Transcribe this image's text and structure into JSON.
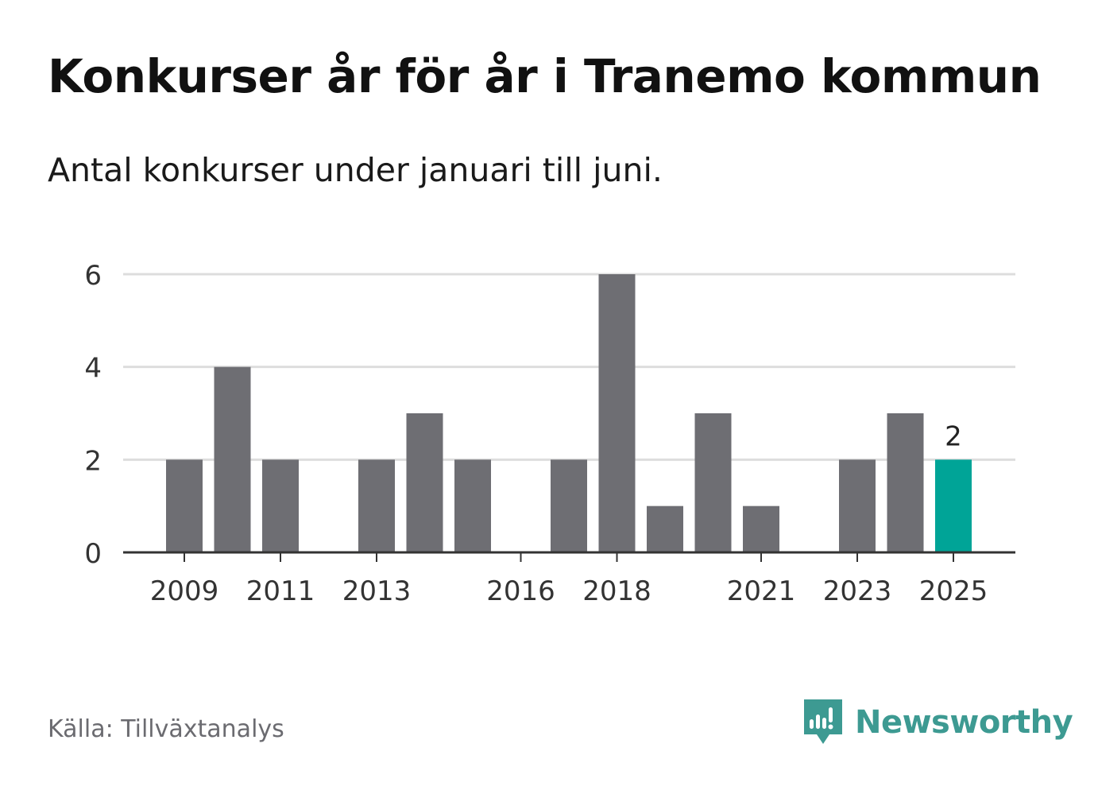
{
  "title": "Konkurser år för år i Tranemo kommun",
  "subtitle": "Antal konkurser under januari till juni.",
  "source": "Källa: Tillväxtanalys",
  "brand": {
    "name": "Newsworthy",
    "icon": "newsworthy-logo-icon",
    "color": "#3d9a92"
  },
  "colors": {
    "bar": "#6e6e73",
    "highlight": "#00a497",
    "grid": "#dddddd",
    "axis": "#333333"
  },
  "chart_data": {
    "type": "bar",
    "title": "Konkurser år för år i Tranemo kommun",
    "xlabel": "",
    "ylabel": "",
    "categories": [
      "2009",
      "2010",
      "2011",
      "2012",
      "2013",
      "2014",
      "2015",
      "2016",
      "2017",
      "2018",
      "2019",
      "2020",
      "2021",
      "2022",
      "2023",
      "2024",
      "2025"
    ],
    "values": [
      2,
      4,
      2,
      0,
      2,
      3,
      2,
      0,
      2,
      6,
      1,
      3,
      1,
      0,
      2,
      3,
      2
    ],
    "ylim": [
      0,
      6
    ],
    "yticks": [
      0,
      2,
      4,
      6
    ],
    "xtick_labels": [
      "2009",
      "2011",
      "2013",
      "2016",
      "2018",
      "2021",
      "2023",
      "2025"
    ],
    "highlight_category": "2025",
    "highlight_label": "2",
    "grid": true
  }
}
